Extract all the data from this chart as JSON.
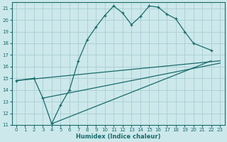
{
  "xlabel": "Humidex (Indice chaleur)",
  "bg_color": "#cce8eb",
  "grid_color": "#aacdd2",
  "line_color": "#1a6b6b",
  "ylim": [
    11,
    21.5
  ],
  "xlim": [
    -0.5,
    23.5
  ],
  "yticks": [
    11,
    12,
    13,
    14,
    15,
    16,
    17,
    18,
    19,
    20,
    21
  ],
  "xticks": [
    0,
    1,
    2,
    3,
    4,
    5,
    6,
    7,
    8,
    9,
    10,
    11,
    12,
    13,
    14,
    15,
    16,
    17,
    18,
    19,
    20,
    21,
    22,
    23
  ],
  "line1_x": [
    0,
    2,
    3,
    4,
    5,
    6,
    7,
    8,
    9,
    10,
    11,
    12,
    13,
    14,
    15,
    16,
    17,
    18,
    19,
    20,
    22
  ],
  "line1_y": [
    14.8,
    15.0,
    13.3,
    11.1,
    12.7,
    14.0,
    16.5,
    18.3,
    19.4,
    20.4,
    21.2,
    20.6,
    19.6,
    20.3,
    21.2,
    21.1,
    20.5,
    20.1,
    19.0,
    18.0,
    17.4
  ],
  "line2_x": [
    0,
    23
  ],
  "line2_y": [
    14.8,
    16.5
  ],
  "line3_x": [
    3,
    23
  ],
  "line3_y": [
    13.3,
    16.3
  ],
  "line4_x": [
    4,
    22
  ],
  "line4_y": [
    11.1,
    16.5
  ]
}
